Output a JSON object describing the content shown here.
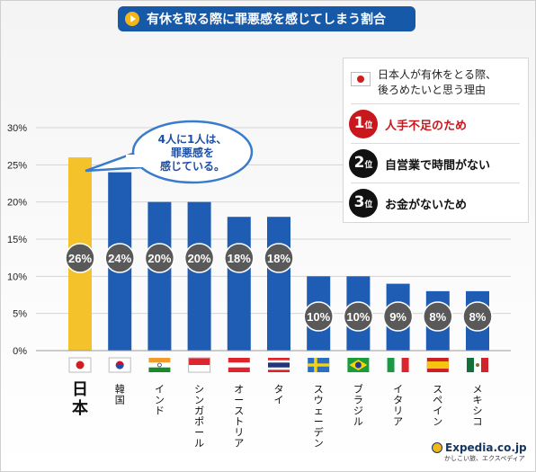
{
  "header": {
    "title": "有休を取る際に罪悪感を感じてしまう割合"
  },
  "callout": {
    "text": "4人に1人は、\n罪悪感を\n感じている。"
  },
  "reasons": {
    "heading": "日本人が有休をとる際、\n後ろめたいと思う理由",
    "rank_unit": "位",
    "items": [
      {
        "rank": "1",
        "label": "人手不足のため"
      },
      {
        "rank": "2",
        "label": "自営業で時間がない"
      },
      {
        "rank": "3",
        "label": "お金がないため"
      }
    ]
  },
  "chart_data": {
    "type": "bar",
    "categories": [
      "日本",
      "韓国",
      "インド",
      "シンガポール",
      "オーストリア",
      "タイ",
      "スウェーデン",
      "ブラジル",
      "イタリア",
      "スペイン",
      "メキシコ"
    ],
    "values": [
      26,
      24,
      20,
      20,
      18,
      18,
      10,
      10,
      9,
      8,
      8
    ],
    "data_labels": [
      "26%",
      "24%",
      "20%",
      "20%",
      "18%",
      "18%",
      "10%",
      "10%",
      "9%",
      "8%",
      "8%"
    ],
    "y_ticks": [
      "0%",
      "5%",
      "10%",
      "15%",
      "20%",
      "25%",
      "30%"
    ],
    "ylim": [
      0,
      30
    ],
    "highlight_category": "日本",
    "colors": {
      "highlight": "#f4c22a",
      "bar": "#1f5db5",
      "label_circle": "#595959"
    }
  },
  "logo": {
    "brand": "Expedia.co.jp",
    "tagline": "かしこい旅、エクスペディア"
  }
}
